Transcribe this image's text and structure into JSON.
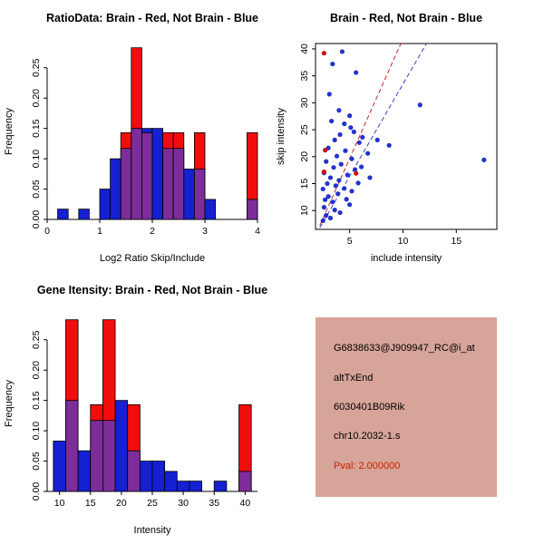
{
  "figure": {
    "background": "#ffffff"
  },
  "chart_data": [
    {
      "id": "ratio-hist",
      "type": "bar",
      "title": "RatioData: Brain - Red, Not Brain - Blue",
      "xlabel": "Log2 Ratio Skip/Include",
      "ylabel": "Frequency",
      "xlim": [
        0,
        4
      ],
      "ylim": [
        0,
        0.29
      ],
      "xticks": [
        0,
        1,
        2,
        3,
        4
      ],
      "yticks": [
        0,
        0.05,
        0.1,
        0.15,
        0.2,
        0.25
      ],
      "ytick_labels": [
        "0.00",
        "0.05",
        "0.10",
        "0.15",
        "0.20",
        "0.25"
      ],
      "bin_width": 0.2,
      "colors": {
        "red": "#f20d0d",
        "blue": "#1420d2",
        "overlap": "#7c2d99"
      },
      "bins": [
        {
          "x": 0.2,
          "red": 0,
          "blue": 0.017
        },
        {
          "x": 0.6,
          "red": 0,
          "blue": 0.017
        },
        {
          "x": 1.0,
          "red": 0,
          "blue": 0.05
        },
        {
          "x": 1.2,
          "red": 0,
          "blue": 0.1
        },
        {
          "x": 1.4,
          "red": 0.143,
          "blue": 0.117
        },
        {
          "x": 1.6,
          "red": 0.283,
          "blue": 0.15
        },
        {
          "x": 1.8,
          "red": 0.143,
          "blue": 0.15
        },
        {
          "x": 2.0,
          "red": 0,
          "blue": 0.15
        },
        {
          "x": 2.2,
          "red": 0.143,
          "blue": 0.117
        },
        {
          "x": 2.4,
          "red": 0.143,
          "blue": 0.117
        },
        {
          "x": 2.6,
          "red": 0,
          "blue": 0.083
        },
        {
          "x": 2.8,
          "red": 0.143,
          "blue": 0.083
        },
        {
          "x": 3.0,
          "red": 0,
          "blue": 0.033
        },
        {
          "x": 3.8,
          "red": 0.143,
          "blue": 0.033
        }
      ]
    },
    {
      "id": "intensity-scatter",
      "type": "scatter",
      "title": "Brain - Red, Not Brain - Blue",
      "xlabel": "include intensity",
      "ylabel": "skip intensity",
      "xlim": [
        1.8,
        18.8
      ],
      "ylim": [
        6.5,
        41
      ],
      "xticks": [
        5,
        10,
        15
      ],
      "yticks": [
        10,
        15,
        20,
        25,
        30,
        35,
        40
      ],
      "colors": {
        "red": "#cc1111",
        "blue": "#2233cc"
      },
      "red_points": [
        [
          2.6,
          39.2
        ],
        [
          2.7,
          21.2
        ],
        [
          2.6,
          17.2
        ],
        [
          5.6,
          16.9
        ]
      ],
      "blue_points": [
        [
          4.3,
          39.5
        ],
        [
          3.4,
          37.2
        ],
        [
          5.6,
          35.6
        ],
        [
          3.1,
          31.6
        ],
        [
          11.6,
          29.6
        ],
        [
          4.0,
          28.6
        ],
        [
          5.0,
          27.6
        ],
        [
          3.3,
          26.6
        ],
        [
          4.5,
          26.1
        ],
        [
          5.1,
          25.4
        ],
        [
          5.4,
          24.6
        ],
        [
          4.1,
          24.1
        ],
        [
          6.2,
          23.6
        ],
        [
          3.6,
          23.1
        ],
        [
          7.6,
          23.1
        ],
        [
          5.9,
          22.6
        ],
        [
          8.7,
          22.1
        ],
        [
          3.0,
          21.6
        ],
        [
          4.6,
          21.1
        ],
        [
          6.7,
          20.6
        ],
        [
          3.8,
          20.1
        ],
        [
          5.2,
          19.6
        ],
        [
          17.6,
          19.4
        ],
        [
          2.8,
          19.1
        ],
        [
          4.2,
          18.6
        ],
        [
          6.1,
          18.1
        ],
        [
          3.5,
          18.0
        ],
        [
          5.5,
          17.6
        ],
        [
          2.6,
          17.0
        ],
        [
          4.8,
          16.6
        ],
        [
          3.2,
          16.1
        ],
        [
          6.9,
          16.1
        ],
        [
          4.0,
          15.6
        ],
        [
          5.8,
          15.1
        ],
        [
          2.9,
          15.0
        ],
        [
          3.7,
          14.6
        ],
        [
          4.5,
          14.1
        ],
        [
          2.5,
          14.0
        ],
        [
          5.2,
          13.6
        ],
        [
          3.9,
          13.1
        ],
        [
          3.0,
          12.6
        ],
        [
          4.7,
          12.1
        ],
        [
          2.7,
          12.0
        ],
        [
          3.4,
          11.6
        ],
        [
          5.0,
          11.1
        ],
        [
          2.6,
          10.6
        ],
        [
          3.6,
          10.1
        ],
        [
          4.1,
          9.6
        ],
        [
          2.8,
          9.1
        ],
        [
          3.2,
          8.6
        ],
        [
          2.5,
          8.1
        ]
      ],
      "lines": [
        {
          "color": "#cc2222",
          "dash": true,
          "x1": 2.2,
          "y1": 7.2,
          "x2": 9.8,
          "y2": 41
        },
        {
          "color": "#3344cc",
          "dash": true,
          "x1": 2.2,
          "y1": 6.8,
          "x2": 12.2,
          "y2": 41
        }
      ]
    },
    {
      "id": "gene-hist",
      "type": "bar",
      "title": "Gene Itensity: Brain - Red, Not Brain - Blue",
      "xlabel": "Intensity",
      "ylabel": "Frequency",
      "xlim": [
        8,
        42
      ],
      "ylim": [
        0,
        0.29
      ],
      "xticks": [
        10,
        15,
        20,
        25,
        30,
        35,
        40
      ],
      "yticks": [
        0,
        0.05,
        0.1,
        0.15,
        0.2,
        0.25
      ],
      "ytick_labels": [
        "0.00",
        "0.05",
        "0.10",
        "0.15",
        "0.20",
        "0.25"
      ],
      "bin_width": 2,
      "colors": {
        "red": "#f20d0d",
        "blue": "#1420d2",
        "overlap": "#7c2d99"
      },
      "bins": [
        {
          "x": 9,
          "red": 0,
          "blue": 0.083
        },
        {
          "x": 11,
          "red": 0.283,
          "blue": 0.15
        },
        {
          "x": 13,
          "red": 0,
          "blue": 0.067
        },
        {
          "x": 15,
          "red": 0.143,
          "blue": 0.117
        },
        {
          "x": 17,
          "red": 0.283,
          "blue": 0.117
        },
        {
          "x": 19,
          "red": 0,
          "blue": 0.15
        },
        {
          "x": 21,
          "red": 0.143,
          "blue": 0.067
        },
        {
          "x": 23,
          "red": 0,
          "blue": 0.05
        },
        {
          "x": 25,
          "red": 0,
          "blue": 0.05
        },
        {
          "x": 27,
          "red": 0,
          "blue": 0.033
        },
        {
          "x": 29,
          "red": 0,
          "blue": 0.017
        },
        {
          "x": 31,
          "red": 0,
          "blue": 0.017
        },
        {
          "x": 35,
          "red": 0,
          "blue": 0.017
        },
        {
          "x": 39,
          "red": 0.143,
          "blue": 0.033
        }
      ]
    }
  ],
  "info": {
    "bg": "#d7a499",
    "pval_color": "#cc2200",
    "probe_id": "G6838633@J909947_RC@i_at",
    "event_type": "altTxEnd",
    "gene": "6030401B09Rik",
    "location": "chr10.2032-1.s",
    "pval": "Pval: 2.000000"
  }
}
